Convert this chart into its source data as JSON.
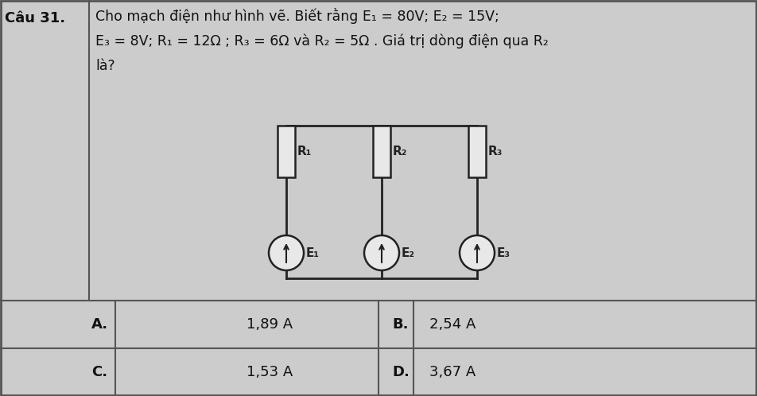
{
  "title_label": "Câu 31.",
  "q_line1": "Cho mạch điện như hình vẽ. Biết rằng E₁ = 80V; E₂ = 15V;",
  "q_line2": "E₃ = 8V; R₁ = 12Ω ; R₃ = 6Ω và R₂ = 5Ω . Giá trị dòng điện qua R₂",
  "q_line3": "là?",
  "ans_A_lbl": "A.",
  "ans_A_val": "1,89 A",
  "ans_B_lbl": "B.",
  "ans_B_val": "2,54 A",
  "ans_C_lbl": "C.",
  "ans_C_val": "1,53 A",
  "ans_D_lbl": "D.",
  "ans_D_val": "3,67 A",
  "bg_color": "#cccccc",
  "cell_bg": "#d4d4d4",
  "border_color": "#555555",
  "text_color": "#111111",
  "circuit_color": "#222222",
  "fig_w": 9.52,
  "fig_h": 4.98,
  "dpi": 100
}
